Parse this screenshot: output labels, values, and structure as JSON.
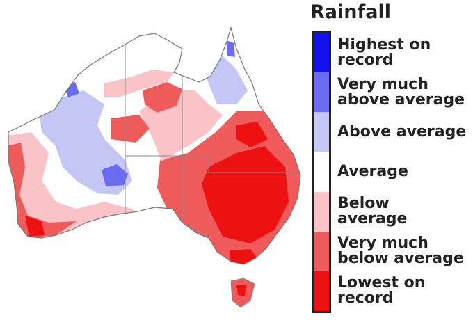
{
  "legend": {
    "title": "Rainfall",
    "items": [
      {
        "label": "Highest on\nrecord",
        "color": "#1111ee"
      },
      {
        "label": "Very much\nabove average",
        "color": "#6a6af2"
      },
      {
        "label": "Above average",
        "color": "#c4c7f5"
      },
      {
        "label": "Average",
        "color": "#ffffff"
      },
      {
        "label": "Below\naverage",
        "color": "#f9c3c7"
      },
      {
        "label": "Very much\nbelow average",
        "color": "#ef5a5a"
      },
      {
        "label": "Lowest on\nrecord",
        "color": "#ee1111"
      }
    ]
  }
}
